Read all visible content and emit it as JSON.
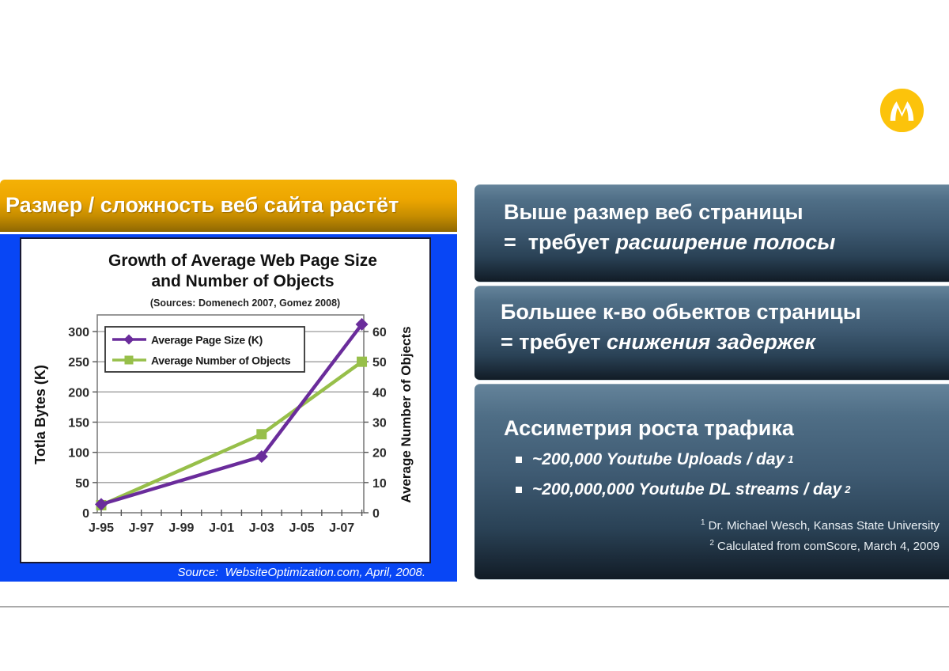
{
  "slide": {
    "header": {
      "title": "Размер / сложность веб сайта растёт"
    },
    "logo": {
      "brand": "motorola",
      "circle_color": "#FCC30B"
    }
  },
  "chart_panel": {
    "source_caption": "Source:  WebsiteOptimization.com, April, 2008."
  },
  "chart_data": {
    "type": "line",
    "title_lines": [
      "Growth of Average Web Page Size",
      "and Number of Objects"
    ],
    "subtitle": "(Sources: Domenech 2007, Gomez 2008)",
    "x_axis": {
      "start_year": 1995,
      "end_year": 2008,
      "tick_every_years": 1,
      "labels": [
        "J-95",
        "J-97",
        "J-99",
        "J-01",
        "J-03",
        "J-05",
        "J-07"
      ],
      "label_years": [
        1995,
        1997,
        1999,
        2001,
        2003,
        2005,
        2007
      ]
    },
    "left_axis": {
      "title": "Totla Bytes (K)",
      "ticks": [
        0,
        50,
        100,
        150,
        200,
        250,
        300
      ],
      "max": 300
    },
    "right_axis": {
      "title": "Average Number of Objects",
      "ticks": [
        0,
        10,
        20,
        30,
        40,
        50,
        60
      ],
      "max": 60
    },
    "grid": true,
    "legend_position": "top-left-inside",
    "series": [
      {
        "name": "Average Number of Objects",
        "axis": "right",
        "color": "#97BF4A",
        "marker": "square",
        "points": [
          {
            "x": 1995,
            "y": 2.5
          },
          {
            "x": 2003,
            "y": 26
          },
          {
            "x": 2008,
            "y": 50
          }
        ]
      },
      {
        "name": "Average Page Size (K)",
        "axis": "left",
        "color": "#6A2C9B",
        "marker": "diamond",
        "points": [
          {
            "x": 1995,
            "y": 14
          },
          {
            "x": 2003,
            "y": 93
          },
          {
            "x": 2008,
            "y": 312
          }
        ]
      }
    ],
    "legend_order": [
      1,
      0
    ]
  },
  "right_boxes": [
    {
      "line1": "Выше размер веб страницы",
      "line2_prefix": "=  требует ",
      "line2_italic": "расширение полосы"
    },
    {
      "line1": "Большее к-во обьектов страницы",
      "line2_prefix": "= требует ",
      "line2_italic": "снижения задержек"
    }
  ],
  "traffic_box": {
    "heading": "Ассиметрия роста трафика",
    "bullets": [
      {
        "text": "~200,000 Youtube Uploads / day",
        "sup": "1"
      },
      {
        "text": "~200,000,000 Youtube DL streams / day",
        "sup": "2"
      }
    ],
    "footnotes": [
      {
        "sup": "1",
        "text": " Dr. Michael Wesch, Kansas State University"
      },
      {
        "sup": "2",
        "text": " Calculated from comScore, March 4, 2009"
      }
    ]
  }
}
